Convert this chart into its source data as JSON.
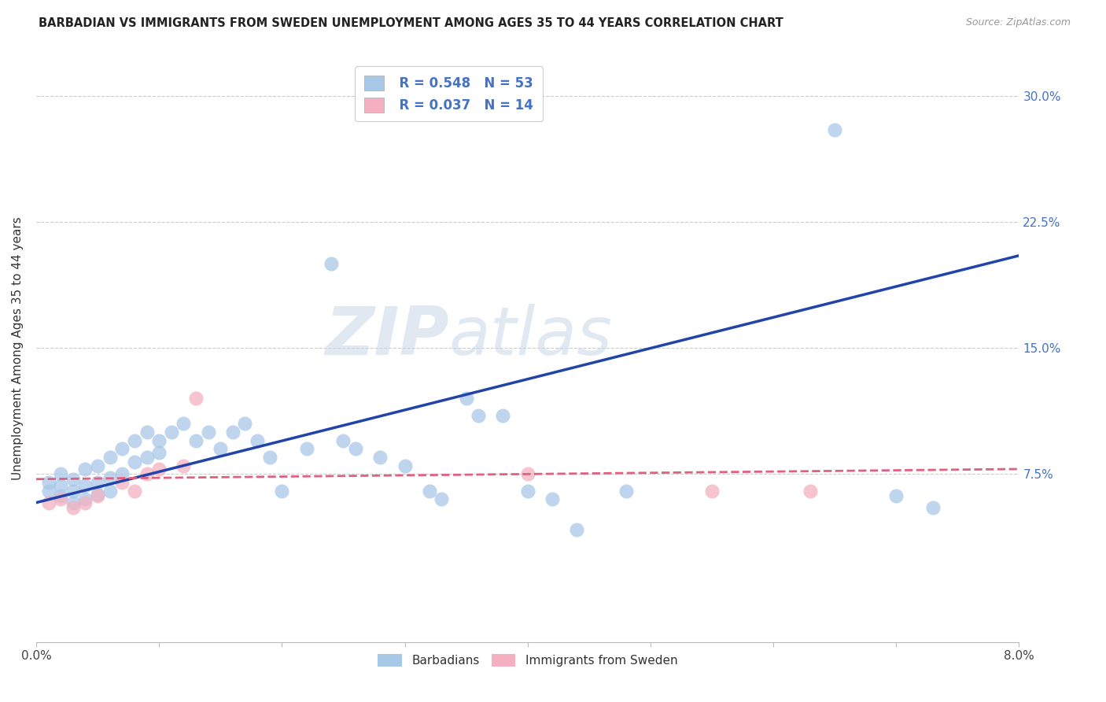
{
  "title": "BARBADIAN VS IMMIGRANTS FROM SWEDEN UNEMPLOYMENT AMONG AGES 35 TO 44 YEARS CORRELATION CHART",
  "source": "Source: ZipAtlas.com",
  "ylabel": "Unemployment Among Ages 35 to 44 years",
  "ytick_values": [
    0.075,
    0.15,
    0.225,
    0.3
  ],
  "ytick_labels": [
    "7.5%",
    "15.0%",
    "22.5%",
    "30.0%"
  ],
  "xmin": 0.0,
  "xmax": 0.08,
  "ymin": -0.025,
  "ymax": 0.325,
  "legend_label1": "Barbadians",
  "legend_label2": "Immigrants from Sweden",
  "color_blue": "#a8c8e8",
  "color_pink": "#f4b0c0",
  "line_blue": "#2244aa",
  "line_pink": "#e06080",
  "watermark_zip": "ZIP",
  "watermark_atlas": "atlas",
  "blue_x": [
    0.001,
    0.001,
    0.002,
    0.002,
    0.002,
    0.003,
    0.003,
    0.003,
    0.004,
    0.004,
    0.004,
    0.005,
    0.005,
    0.005,
    0.006,
    0.006,
    0.006,
    0.007,
    0.007,
    0.008,
    0.008,
    0.009,
    0.009,
    0.01,
    0.01,
    0.011,
    0.012,
    0.013,
    0.014,
    0.015,
    0.016,
    0.017,
    0.018,
    0.019,
    0.02,
    0.022,
    0.024,
    0.025,
    0.026,
    0.028,
    0.03,
    0.032,
    0.033,
    0.035,
    0.036,
    0.038,
    0.04,
    0.042,
    0.044,
    0.048,
    0.065,
    0.07,
    0.073
  ],
  "blue_y": [
    0.065,
    0.07,
    0.062,
    0.068,
    0.075,
    0.058,
    0.065,
    0.072,
    0.06,
    0.068,
    0.078,
    0.063,
    0.07,
    0.08,
    0.065,
    0.073,
    0.085,
    0.075,
    0.09,
    0.082,
    0.095,
    0.085,
    0.1,
    0.088,
    0.095,
    0.1,
    0.105,
    0.095,
    0.1,
    0.09,
    0.1,
    0.105,
    0.095,
    0.085,
    0.065,
    0.09,
    0.2,
    0.095,
    0.09,
    0.085,
    0.08,
    0.065,
    0.06,
    0.12,
    0.11,
    0.11,
    0.065,
    0.06,
    0.042,
    0.065,
    0.28,
    0.062,
    0.055
  ],
  "pink_x": [
    0.001,
    0.002,
    0.003,
    0.004,
    0.005,
    0.007,
    0.008,
    0.009,
    0.01,
    0.012,
    0.013,
    0.04,
    0.055,
    0.063
  ],
  "pink_y": [
    0.058,
    0.06,
    0.055,
    0.058,
    0.062,
    0.07,
    0.065,
    0.075,
    0.078,
    0.08,
    0.12,
    0.075,
    0.065,
    0.065
  ],
  "blue_line_x0": 0.0,
  "blue_line_x1": 0.08,
  "blue_line_y0": 0.058,
  "blue_line_y1": 0.205,
  "pink_line_x0": 0.0,
  "pink_line_x1": 0.08,
  "pink_line_y0": 0.072,
  "pink_line_y1": 0.078
}
